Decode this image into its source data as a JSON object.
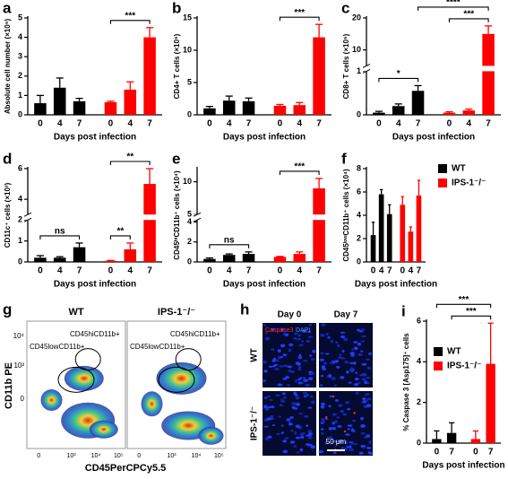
{
  "chart_data": [
    {
      "type": "bar",
      "panel": "a",
      "ylabel": "Absolute cell number (×10⁵)",
      "xlabel": "Days post infection",
      "categories": [
        "0",
        "4",
        "7"
      ],
      "ylim": [
        0,
        5
      ],
      "yticks": [
        0,
        1,
        2,
        3,
        4,
        5
      ],
      "series": [
        {
          "color": "#000000",
          "values": [
            0.6,
            1.4,
            0.7
          ],
          "errors": [
            0.4,
            0.5,
            0.15
          ]
        },
        {
          "color": "#ff0000",
          "values": [
            0.65,
            1.3,
            4.0
          ],
          "errors": [
            0.05,
            0.4,
            0.5
          ]
        }
      ],
      "annotations": [
        {
          "text": "***",
          "between": [
            [
              1,
              0
            ],
            [
              1,
              2
            ]
          ]
        }
      ]
    },
    {
      "type": "bar",
      "panel": "b",
      "ylabel": "CD4+ T cells (×10⁵)",
      "xlabel": "Days post infection",
      "categories": [
        "0",
        "4",
        "7"
      ],
      "ylim": [
        0,
        15
      ],
      "yticks": [
        0,
        5,
        10,
        15
      ],
      "series": [
        {
          "color": "#000000",
          "values": [
            1.0,
            2.2,
            2.1
          ],
          "errors": [
            0.3,
            0.7,
            0.5
          ]
        },
        {
          "color": "#ff0000",
          "values": [
            1.4,
            1.5,
            12.0
          ],
          "errors": [
            0.2,
            0.4,
            2.0
          ]
        }
      ],
      "annotations": [
        {
          "text": "***",
          "between": [
            [
              1,
              0
            ],
            [
              1,
              2
            ]
          ]
        }
      ]
    },
    {
      "type": "bar",
      "panel": "c",
      "ylabel": "CD8+ T cells (×10⁵)",
      "xlabel": "Days post infection",
      "categories": [
        "0",
        "4",
        "7"
      ],
      "ylim": [
        0,
        20
      ],
      "ybreak": [
        1,
        5
      ],
      "yticks": [
        0,
        1,
        10,
        20
      ],
      "series": [
        {
          "color": "#000000",
          "values": [
            0.05,
            0.2,
            0.55
          ],
          "errors": [
            0.03,
            0.05,
            0.12
          ]
        },
        {
          "color": "#ff0000",
          "values": [
            0.05,
            0.1,
            15.0
          ],
          "errors": [
            0.02,
            0.03,
            2.5
          ]
        }
      ],
      "annotations": [
        {
          "text": "*",
          "between": [
            [
              0,
              0
            ],
            [
              0,
              2
            ]
          ]
        },
        {
          "text": "***",
          "between": [
            [
              1,
              0
            ],
            [
              1,
              2
            ]
          ]
        },
        {
          "text": "****",
          "between": [
            [
              0,
              2
            ],
            [
              1,
              2
            ]
          ]
        }
      ]
    },
    {
      "type": "bar",
      "panel": "d",
      "ylabel": "CD11c⁺ cells (×10³)",
      "xlabel": "Days post infection",
      "categories": [
        "0",
        "4",
        "7"
      ],
      "ylim": [
        0,
        6
      ],
      "ybreak": [
        2,
        3
      ],
      "yticks": [
        0,
        1,
        2,
        4,
        6
      ],
      "series": [
        {
          "color": "#000000",
          "values": [
            0.2,
            0.2,
            0.7
          ],
          "errors": [
            0.1,
            0.05,
            0.2
          ]
        },
        {
          "color": "#ff0000",
          "values": [
            0.05,
            0.6,
            5.0
          ],
          "errors": [
            0.02,
            0.3,
            1.0
          ]
        }
      ],
      "annotations": [
        {
          "text": "ns",
          "between": [
            [
              0,
              0
            ],
            [
              0,
              2
            ]
          ]
        },
        {
          "text": "**",
          "between": [
            [
              1,
              0
            ],
            [
              1,
              1
            ]
          ]
        },
        {
          "text": "**",
          "between": [
            [
              1,
              0
            ],
            [
              1,
              2
            ]
          ]
        }
      ]
    },
    {
      "type": "bar",
      "panel": "e",
      "ylabel": "CD45ʰⁱCD11b⁺ cells (×10⁴)",
      "xlabel": "Days post infection",
      "categories": [
        "0",
        "4",
        "7"
      ],
      "ylim": [
        0,
        12
      ],
      "ybreak": [
        4.2,
        5
      ],
      "yticks": [
        0,
        2,
        4,
        5,
        10
      ],
      "series": [
        {
          "color": "#000000",
          "values": [
            0.3,
            0.7,
            0.8
          ],
          "errors": [
            0.1,
            0.1,
            0.2
          ]
        },
        {
          "color": "#ff0000",
          "values": [
            0.5,
            0.8,
            9.0
          ],
          "errors": [
            0.05,
            0.2,
            1.5
          ]
        }
      ],
      "annotations": [
        {
          "text": "ns",
          "between": [
            [
              0,
              0
            ],
            [
              0,
              2
            ]
          ]
        },
        {
          "text": "***",
          "between": [
            [
              1,
              0
            ],
            [
              1,
              2
            ]
          ]
        }
      ]
    },
    {
      "type": "bar",
      "panel": "f",
      "ylabel": "CD45ˡᵒʷCD11b⁺ cells (×10⁴)",
      "xlabel": "Days post infection",
      "categories": [
        "0",
        "4",
        "7"
      ],
      "ylim": [
        0,
        8
      ],
      "yticks": [
        0,
        2,
        4,
        6,
        8
      ],
      "legend": "right",
      "series": [
        {
          "name": "WT",
          "color": "#000000",
          "values": [
            2.3,
            5.8,
            4.1
          ],
          "errors": [
            1.1,
            0.4,
            0.8
          ]
        },
        {
          "name": "IPS-1⁻/⁻",
          "color": "#ff0000",
          "values": [
            4.9,
            2.6,
            5.7
          ],
          "errors": [
            0.7,
            0.4,
            1.3
          ]
        }
      ],
      "annotations": []
    },
    {
      "type": "bar",
      "panel": "i",
      "ylabel": "% Caspase 3 [Asp175]⁺ cells",
      "xlabel": "Days post infection",
      "categories": [
        "0",
        "7"
      ],
      "ylim": [
        0,
        6
      ],
      "yticks": [
        0,
        2,
        4,
        6
      ],
      "legend": "upper-left",
      "series": [
        {
          "name": "WT",
          "color": "#000000",
          "values": [
            0.2,
            0.5
          ],
          "errors": [
            0.4,
            0.5
          ]
        },
        {
          "name": "IPS-1⁻/⁻",
          "color": "#ff0000",
          "values": [
            0.2,
            3.9
          ],
          "errors": [
            0.4,
            2.0
          ]
        }
      ],
      "annotations": [
        {
          "text": "***",
          "between": [
            [
              0,
              1
            ],
            [
              1,
              1
            ]
          ]
        },
        {
          "text": "***",
          "between": [
            [
              0,
              0
            ],
            [
              1,
              1
            ]
          ]
        }
      ]
    }
  ],
  "flow_panel": {
    "panel": "g",
    "titles": [
      "WT",
      "IPS-1⁻/⁻"
    ],
    "gate_high": "CD45hiCD11b+",
    "gate_low": "CD45lowCD11b+",
    "ylabel": "CD11b PE",
    "xlabel": "CD45PerCPCy5.5",
    "y_tick_labels": [
      "10⁴",
      "10³",
      "0"
    ],
    "x_tick_labels": [
      "0",
      "10³",
      "10⁴",
      "10⁵"
    ]
  },
  "image_panel": {
    "panel": "h",
    "columns": [
      "Day 0",
      "Day 7"
    ],
    "rows": [
      "WT",
      "IPS-1⁻/⁻"
    ],
    "stain_red": "Caspase3",
    "stain_blue": "DAPI",
    "scale": "50 μm"
  }
}
